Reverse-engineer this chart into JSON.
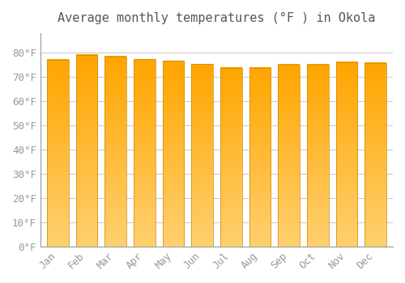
{
  "title": "Average monthly temperatures (°F ) in Okola",
  "months": [
    "Jan",
    "Feb",
    "Mar",
    "Apr",
    "May",
    "Jun",
    "Jul",
    "Aug",
    "Sep",
    "Oct",
    "Nov",
    "Dec"
  ],
  "values": [
    77.0,
    79.0,
    78.3,
    77.2,
    76.5,
    75.2,
    73.8,
    73.8,
    75.0,
    75.0,
    76.1,
    75.7
  ],
  "bar_color_top": "#FFA500",
  "bar_color_bottom": "#FFD070",
  "bar_edge_color": "#CC8800",
  "background_color": "#FFFFFF",
  "plot_bg_color": "#FFFFFF",
  "grid_color": "#CCCCCC",
  "tick_color": "#999999",
  "title_color": "#555555",
  "ylim": [
    0,
    88
  ],
  "yticks": [
    0,
    10,
    20,
    30,
    40,
    50,
    60,
    70,
    80
  ],
  "ytick_labels": [
    "0°F",
    "10°F",
    "20°F",
    "30°F",
    "40°F",
    "50°F",
    "60°F",
    "70°F",
    "80°F"
  ],
  "font_family": "monospace",
  "title_fontsize": 11,
  "tick_fontsize": 9
}
